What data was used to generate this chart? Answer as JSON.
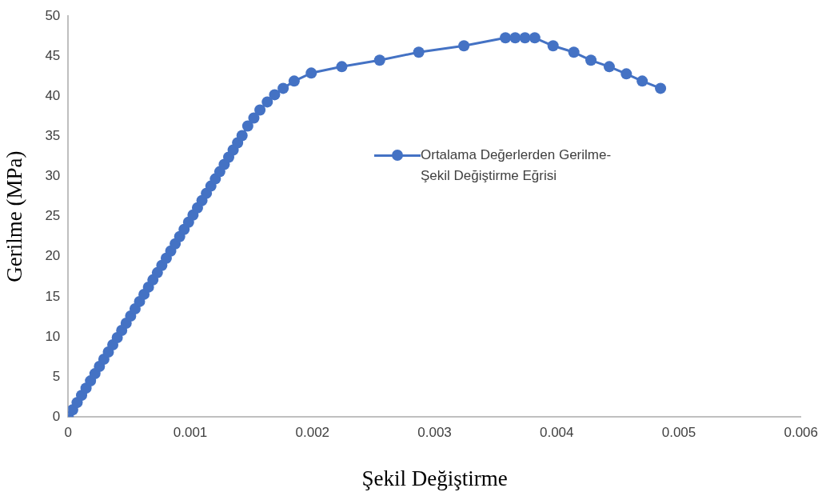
{
  "chart_data": {
    "type": "line",
    "xlabel": "Şekil Değiştirme",
    "ylabel": "Gerilme (MPa)",
    "xlim": [
      0,
      0.006
    ],
    "xticks": [
      0,
      0.001,
      0.002,
      0.003,
      0.004,
      0.005,
      0.006
    ],
    "ylim": [
      0,
      50
    ],
    "yticks": [
      0,
      5,
      10,
      15,
      20,
      25,
      30,
      35,
      40,
      45,
      50
    ],
    "grid": false,
    "legend": "center",
    "marker": "circle",
    "line_style": "solid",
    "series": [
      {
        "name": "Ortalama Değerlerden Gerilme-Şekil Değiştirme Eğrisi",
        "color": "#4472c4",
        "x": [
          0,
          3.65e-05,
          7.3e-05,
          0.0001095,
          0.000146,
          0.0001825,
          0.000219,
          0.0002555,
          0.000292,
          0.0003285,
          0.000365,
          0.0004015,
          0.000438,
          0.0004745,
          0.000511,
          0.0005475,
          0.000584,
          0.0006205,
          0.000657,
          0.0006935,
          0.00073,
          0.0007665,
          0.000803,
          0.0008395,
          0.000876,
          0.0009125,
          0.000949,
          0.0009855,
          0.001022,
          0.0010585,
          0.001095,
          0.0011315,
          0.001168,
          0.0012045,
          0.001241,
          0.0012775,
          0.001314,
          0.0013505,
          0.001387,
          0.0014235,
          0.00147,
          0.00152,
          0.00157,
          0.00163,
          0.00169,
          0.00176,
          0.00185,
          0.00199,
          0.00224,
          0.00255,
          0.00287,
          0.00324,
          0.00358,
          0.00366,
          0.00374,
          0.00382,
          0.00397,
          0.00414,
          0.00428,
          0.00443,
          0.00457,
          0.0047,
          0.00485
        ],
        "values": [
          0,
          0.9,
          1.8,
          2.7,
          3.6,
          4.5,
          5.4,
          6.3,
          7.2,
          8.1,
          9,
          9.9,
          10.8,
          11.7,
          12.6,
          13.5,
          14.4,
          15.3,
          16.2,
          17.1,
          18,
          18.9,
          19.8,
          20.7,
          21.6,
          22.5,
          23.4,
          24.3,
          25.2,
          26.1,
          27,
          27.9,
          28.8,
          29.7,
          30.6,
          31.5,
          32.4,
          33.3,
          34.2,
          35.1,
          36.3,
          37.3,
          38.3,
          39.3,
          40.2,
          41,
          41.9,
          42.9,
          43.7,
          44.5,
          45.5,
          46.3,
          47.3,
          47.3,
          47.3,
          47.3,
          46.3,
          45.5,
          44.5,
          43.7,
          42.8,
          41.9,
          41
        ]
      }
    ]
  }
}
